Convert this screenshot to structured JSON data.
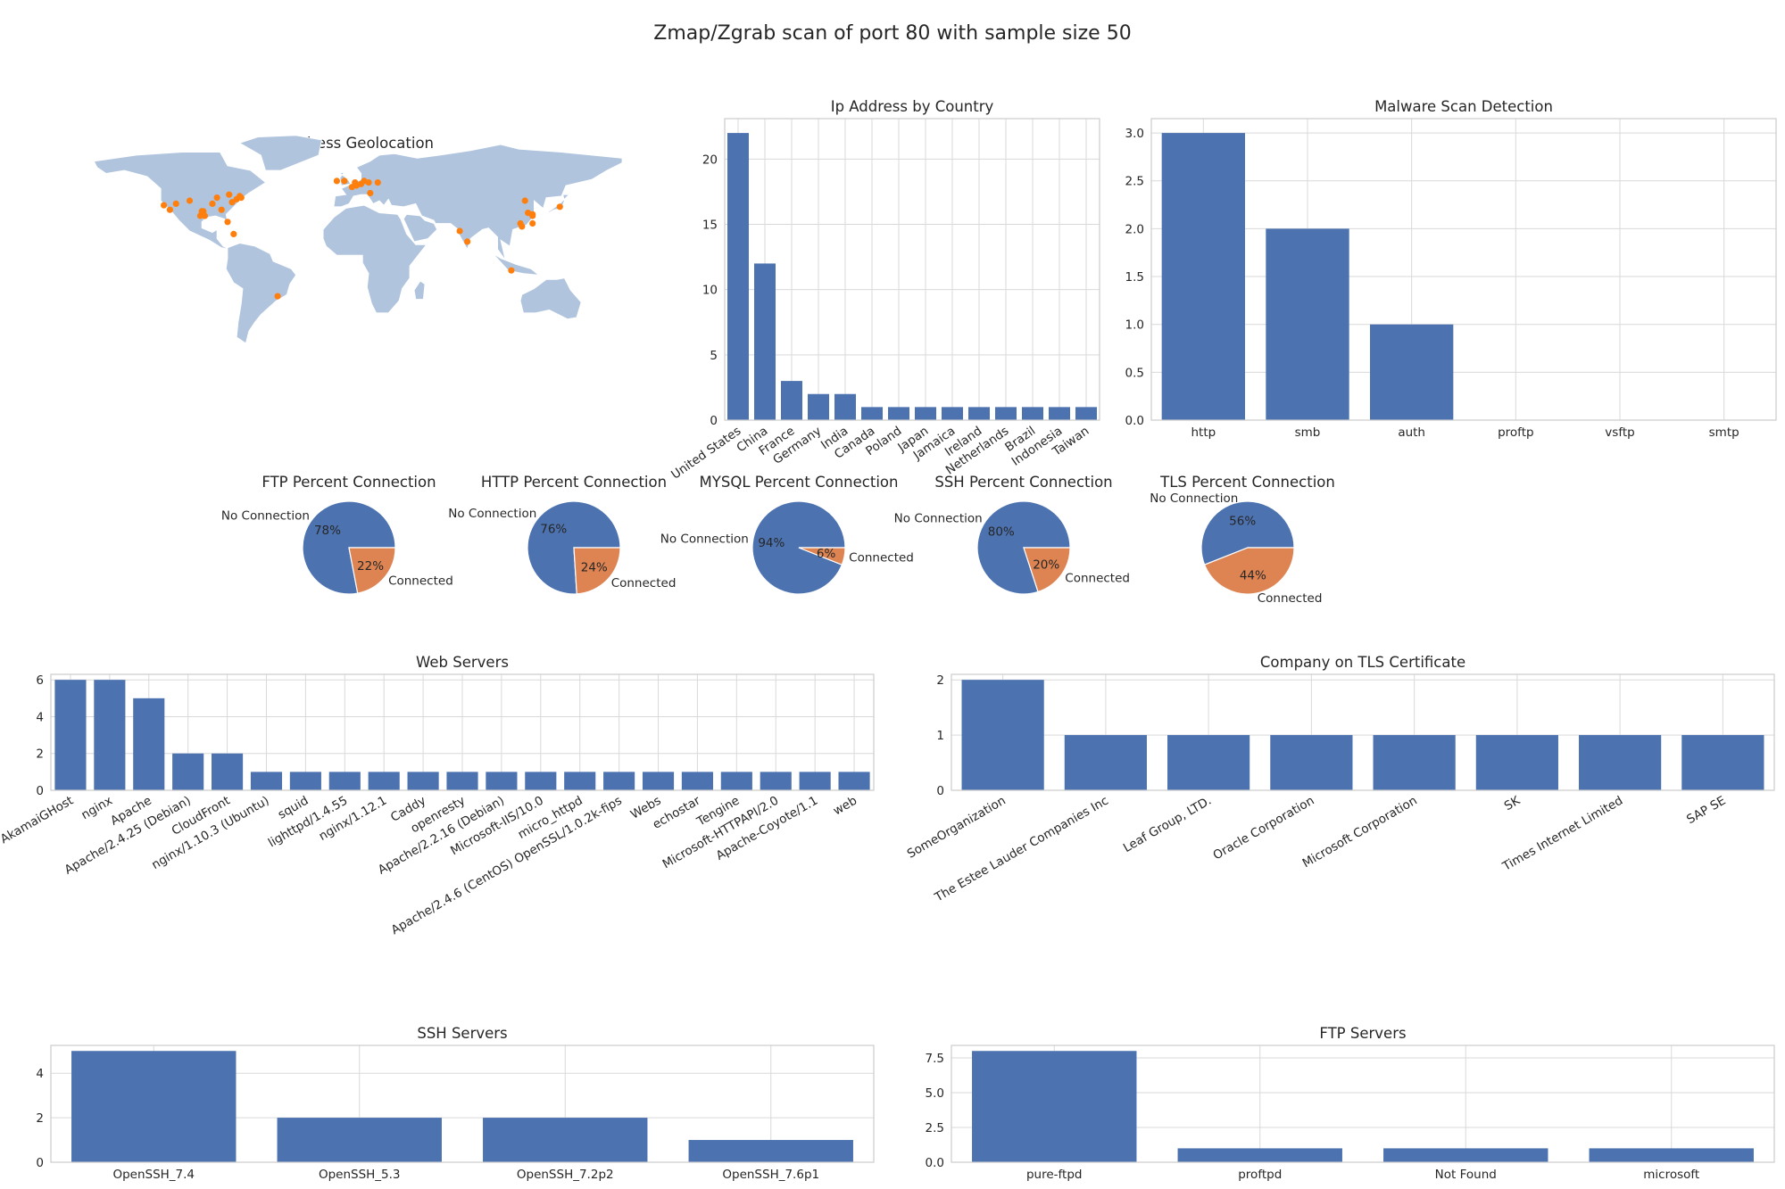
{
  "figure": {
    "title": "Zmap/Zgrab scan of port 80 with sample size 50"
  },
  "colors": {
    "bar": "#4c72b0",
    "pie_second": "#dd8452",
    "land": "#b0c4de",
    "marker": "#ff7f0e"
  },
  "chart_data": [
    {
      "id": "map",
      "type": "scatter",
      "title": "Ip Address Geolocation",
      "points_lon_lat": [
        [
          -118,
          34
        ],
        [
          -122,
          37
        ],
        [
          -105,
          40
        ],
        [
          -97,
          33
        ],
        [
          -95,
          30
        ],
        [
          -90,
          38
        ],
        [
          -87,
          42
        ],
        [
          -84,
          34
        ],
        [
          -80,
          26
        ],
        [
          -77,
          39
        ],
        [
          -74,
          41
        ],
        [
          -72,
          43
        ],
        [
          -71,
          42
        ],
        [
          -79,
          44
        ],
        [
          -114,
          38
        ],
        [
          -98,
          30
        ],
        [
          -76,
          18
        ],
        [
          -96,
          33
        ],
        [
          -3,
          53
        ],
        [
          2,
          49
        ],
        [
          4,
          52
        ],
        [
          5,
          50
        ],
        [
          8,
          51
        ],
        [
          10,
          53
        ],
        [
          13,
          52
        ],
        [
          14,
          45
        ],
        [
          19,
          52
        ],
        [
          -8,
          53
        ],
        [
          73,
          20
        ],
        [
          78,
          13
        ],
        [
          121,
          31
        ],
        [
          116,
          40
        ],
        [
          139,
          36
        ],
        [
          114,
          23
        ],
        [
          113,
          25
        ],
        [
          121,
          25
        ],
        [
          118,
          32
        ],
        [
          121,
          30
        ],
        [
          107,
          -6
        ],
        [
          -47,
          -23
        ]
      ]
    },
    {
      "id": "country",
      "type": "bar",
      "title": "Ip Address by Country",
      "categories": [
        "United States",
        "China",
        "France",
        "Germany",
        "India",
        "Canada",
        "Poland",
        "Japan",
        "Jamaica",
        "Ireland",
        "Netherlands",
        "Brazil",
        "Indonesia",
        "Taiwan"
      ],
      "values": [
        22,
        12,
        3,
        2,
        2,
        1,
        1,
        1,
        1,
        1,
        1,
        1,
        1,
        1
      ],
      "ylim": [
        0,
        23.1
      ],
      "yticks": [
        "0",
        "5",
        "10",
        "15",
        "20"
      ],
      "ytick_values": [
        0,
        5,
        10,
        15,
        20
      ]
    },
    {
      "id": "malware",
      "type": "bar",
      "title": "Malware Scan Detection",
      "categories": [
        "http",
        "smb",
        "auth",
        "proftp",
        "vsftp",
        "smtp"
      ],
      "values": [
        3,
        2,
        1,
        0,
        0,
        0
      ],
      "ylim": [
        0,
        3.15
      ],
      "yticks": [
        "0.0",
        "0.5",
        "1.0",
        "1.5",
        "2.0",
        "2.5",
        "3.0"
      ],
      "ytick_values": [
        0,
        0.5,
        1,
        1.5,
        2,
        2.5,
        3
      ]
    },
    {
      "id": "ftp_pie",
      "type": "pie",
      "title": "FTP Percent Connection",
      "labels": [
        "No Connection",
        "Connected"
      ],
      "values": [
        78,
        22
      ],
      "pct_labels": [
        "78%",
        "22%"
      ]
    },
    {
      "id": "http_pie",
      "type": "pie",
      "title": "HTTP Percent Connection",
      "labels": [
        "No Connection",
        "Connected"
      ],
      "values": [
        76,
        24
      ],
      "pct_labels": [
        "76%",
        "24%"
      ]
    },
    {
      "id": "mysql_pie",
      "type": "pie",
      "title": "MYSQL Percent Connection",
      "labels": [
        "No Connection",
        "Connected"
      ],
      "values": [
        94,
        6
      ],
      "pct_labels": [
        "94%",
        "6%"
      ]
    },
    {
      "id": "ssh_pie",
      "type": "pie",
      "title": "SSH Percent Connection",
      "labels": [
        "No Connection",
        "Connected"
      ],
      "values": [
        80,
        20
      ],
      "pct_labels": [
        "80%",
        "20%"
      ]
    },
    {
      "id": "tls_pie",
      "type": "pie",
      "title": "TLS Percent Connection",
      "labels": [
        "No Connection",
        "Connected"
      ],
      "values": [
        56,
        44
      ],
      "pct_labels": [
        "56%",
        "44%"
      ]
    },
    {
      "id": "web",
      "type": "bar",
      "title": "Web Servers",
      "categories": [
        "AkamaiGHost",
        "nginx",
        "Apache",
        "Apache/2.4.25 (Debian)",
        "CloudFront",
        "nginx/1.10.3 (Ubuntu)",
        "squid",
        "lighttpd/1.4.55",
        "nginx/1.12.1",
        "Caddy",
        "openresty",
        "Apache/2.2.16 (Debian)",
        "Microsoft-IIS/10.0",
        "micro_httpd",
        "Apache/2.4.6 (CentOS) OpenSSL/1.0.2k-fips",
        "Webs",
        "echostar",
        "Tengine",
        "Microsoft-HTTPAPI/2.0",
        "Apache-Coyote/1.1",
        "web"
      ],
      "values": [
        6,
        6,
        5,
        2,
        2,
        1,
        1,
        1,
        1,
        1,
        1,
        1,
        1,
        1,
        1,
        1,
        1,
        1,
        1,
        1,
        1
      ],
      "ylim": [
        0,
        6.3
      ],
      "yticks": [
        "0",
        "2",
        "4",
        "6"
      ],
      "ytick_values": [
        0,
        2,
        4,
        6
      ]
    },
    {
      "id": "tls_company",
      "type": "bar",
      "title": "Company on TLS Certificate",
      "categories": [
        "SomeOrganization",
        "The Estee Lauder Companies Inc",
        "Leaf Group, LTD.",
        "Oracle Corporation",
        "Microsoft Corporation",
        "SK",
        "Times Internet Limited",
        "SAP SE"
      ],
      "values": [
        2,
        1,
        1,
        1,
        1,
        1,
        1,
        1
      ],
      "ylim": [
        0,
        2.1
      ],
      "yticks": [
        "0",
        "1",
        "2"
      ],
      "ytick_values": [
        0,
        1,
        2
      ]
    },
    {
      "id": "ssh_servers",
      "type": "bar",
      "title": "SSH Servers",
      "categories": [
        "OpenSSH_7.4",
        "OpenSSH_5.3",
        "OpenSSH_7.2p2",
        "OpenSSH_7.6p1"
      ],
      "values": [
        5,
        2,
        2,
        1
      ],
      "ylim": [
        0,
        5.25
      ],
      "yticks": [
        "0",
        "2",
        "4"
      ],
      "ytick_values": [
        0,
        2,
        4
      ]
    },
    {
      "id": "ftp_servers",
      "type": "bar",
      "title": "FTP Servers",
      "categories": [
        "pure-ftpd",
        "proftpd",
        "Not Found",
        "microsoft"
      ],
      "values": [
        8,
        1,
        1,
        1
      ],
      "ylim": [
        0,
        8.4
      ],
      "yticks": [
        "0.0",
        "2.5",
        "5.0",
        "7.5"
      ],
      "ytick_values": [
        0,
        2.5,
        5,
        7.5
      ]
    }
  ]
}
